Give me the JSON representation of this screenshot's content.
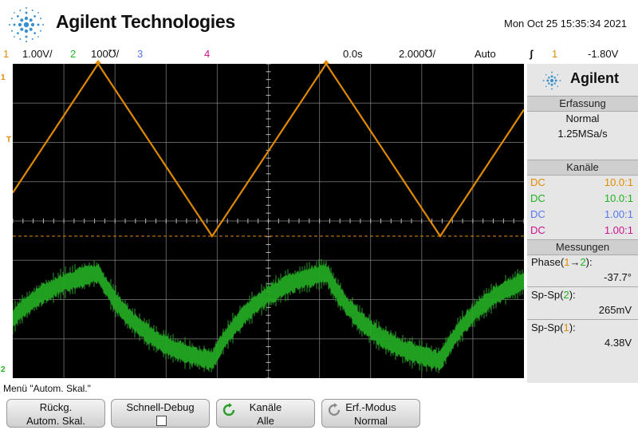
{
  "header": {
    "brand": "Agilent Technologies",
    "datetime": "Mon Oct 25 15:35:34 2021"
  },
  "status": {
    "ch1_num": "1",
    "ch1_scale": "1.00V/",
    "ch2_num": "2",
    "ch2_scale": "100℧/",
    "ch3_num": "3",
    "ch4_num": "4",
    "time_offset": "0.0s",
    "time_scale": "2.000℧/",
    "trigger_mode": "Auto",
    "trigger_symbol": "ʃ",
    "trigger_source": "1",
    "trigger_level": "-1.80V"
  },
  "colors": {
    "ch1": "#e08a00",
    "ch2": "#1fb21f",
    "ch3": "#5577ee",
    "ch4": "#d01090",
    "grid": "#ffffff"
  },
  "markers": {
    "ch1": "1",
    "ch1_trigger": "T",
    "ch2": "2"
  },
  "panel": {
    "brand": "Agilent",
    "acq_header": "Erfassung",
    "acq_mode": "Normal",
    "acq_rate": "1.25MSa/s",
    "channels_header": "Kanäle",
    "channels": [
      {
        "coupling": "DC",
        "ratio": "10.0:1"
      },
      {
        "coupling": "DC",
        "ratio": "10.0:1"
      },
      {
        "coupling": "DC",
        "ratio": "1.00:1"
      },
      {
        "coupling": "DC",
        "ratio": "1.00:1"
      }
    ],
    "meas_header": "Messungen",
    "meas_phase_label": "Phase(",
    "meas_phase_a": "1",
    "meas_phase_arrow": "→",
    "meas_phase_b": "2",
    "meas_phase_end": "):",
    "meas_phase_value": "-37.7°",
    "meas_sp2_label": "Sp-Sp(",
    "meas_sp2_ch": "2",
    "meas_sp2_end": "):",
    "meas_sp2_value": "265mV",
    "meas_sp1_label": "Sp-Sp(",
    "meas_sp1_ch": "1",
    "meas_sp1_end": "):",
    "meas_sp1_value": "4.38V"
  },
  "menu_label": "Menü \"Autom. Skal.\"",
  "softkeys": [
    {
      "line1": "Rückg.",
      "line2": "Autom. Skal."
    },
    {
      "line1": "Schnell-Debug",
      "line2": ""
    },
    {
      "line1": "Kanäle",
      "line2": "Alle"
    },
    {
      "line1": "Erf.-Modus",
      "line2": "Normal"
    }
  ]
}
